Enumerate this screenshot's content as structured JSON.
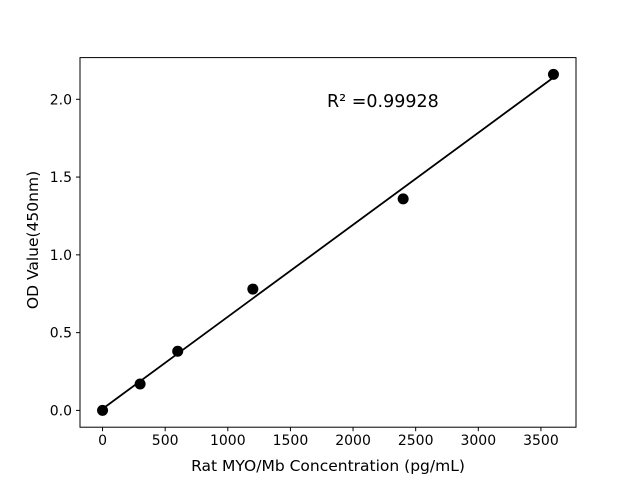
{
  "chart_data": {
    "type": "scatter",
    "title": "",
    "xlabel": "Rat MYO/Mb Concentration (pg/mL)",
    "ylabel": "OD Value(450nm)",
    "annotation": "R² =0.99928",
    "points": {
      "x": [
        0,
        300,
        600,
        1200,
        2400,
        3600
      ],
      "y": [
        0.0,
        0.17,
        0.38,
        0.78,
        1.36,
        2.16
      ]
    },
    "fit_line": {
      "x": [
        0,
        3600
      ],
      "y": [
        0.01,
        2.14
      ],
      "r_squared": 0.99928
    },
    "xlim": [
      -180,
      3780
    ],
    "ylim": [
      -0.108,
      2.268
    ],
    "xticks": [
      0,
      500,
      1000,
      1500,
      2000,
      2500,
      3000,
      3500
    ],
    "xtick_labels": [
      "0",
      "500",
      "1000",
      "1500",
      "2000",
      "2500",
      "3000",
      "3500"
    ],
    "yticks": [
      0.0,
      0.5,
      1.0,
      1.5,
      2.0
    ],
    "ytick_labels": [
      "0.0",
      "0.5",
      "1.0",
      "1.5",
      "2.0"
    ],
    "grid": false,
    "legend_position": "none",
    "colors": {
      "marker": "#000000",
      "line": "#000000",
      "axis": "#000000",
      "background": "#ffffff"
    }
  }
}
